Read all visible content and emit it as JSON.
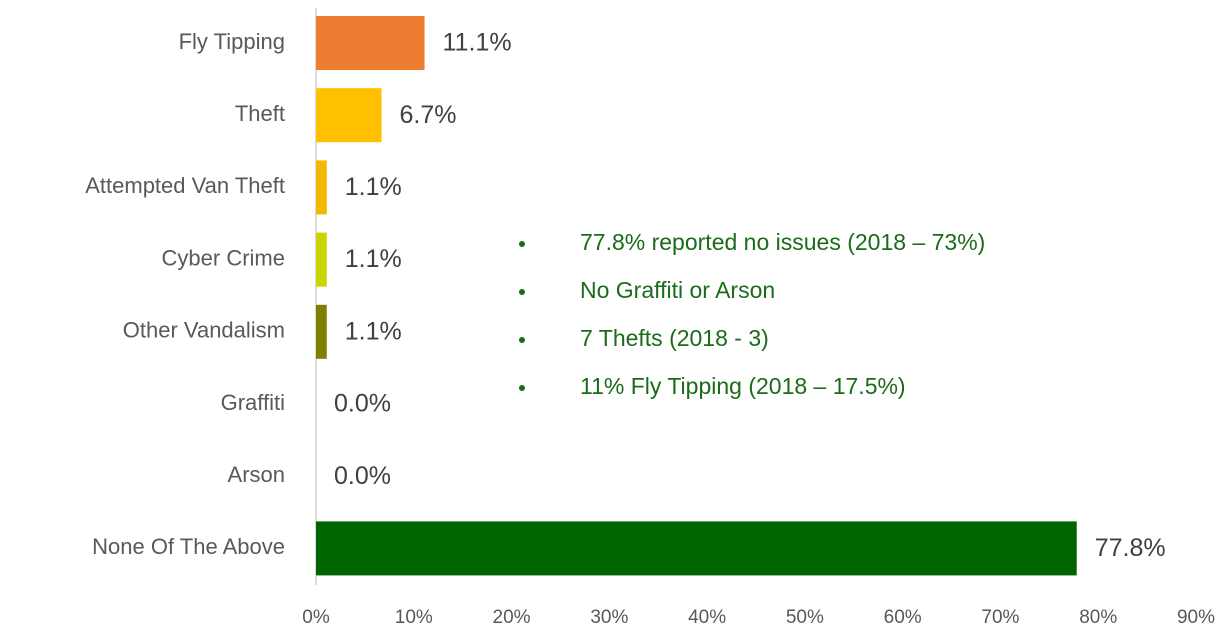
{
  "chart_data": {
    "type": "bar",
    "orientation": "horizontal",
    "categories": [
      "Fly Tipping",
      "Theft",
      "Attempted Van Theft",
      "Cyber Crime",
      "Other Vandalism",
      "Graffiti",
      "Arson",
      "None Of The Above"
    ],
    "values": [
      11.1,
      6.7,
      1.1,
      1.1,
      1.1,
      0.0,
      0.0,
      77.8
    ],
    "value_labels": [
      "11.1%",
      "6.7%",
      "1.1%",
      "1.1%",
      "1.1%",
      "0.0%",
      "0.0%",
      "77.8%"
    ],
    "colors": [
      "#ed7d31",
      "#ffc000",
      "#f5b800",
      "#c9d400",
      "#7f7f00",
      "#a5a5a5",
      "#a5a5a5",
      "#006400"
    ],
    "xlim": [
      0,
      90
    ],
    "xticks": [
      {
        "value": 0,
        "label": "0%"
      },
      {
        "value": 10,
        "label": "10%"
      },
      {
        "value": 20,
        "label": "20%"
      },
      {
        "value": 30,
        "label": "30%"
      },
      {
        "value": 40,
        "label": "40%"
      },
      {
        "value": 50,
        "label": "50%"
      },
      {
        "value": 60,
        "label": "60%"
      },
      {
        "value": 70,
        "label": "70%"
      },
      {
        "value": 80,
        "label": "80%"
      },
      {
        "value": 90,
        "label": "90%"
      }
    ],
    "grid": false,
    "annotations": [
      "77.8% reported no issues (2018 – 73%)",
      "No Graffiti or Arson",
      "7 Thefts (2018 - 3)",
      "11% Fly Tipping (2018 – 17.5%)"
    ]
  }
}
